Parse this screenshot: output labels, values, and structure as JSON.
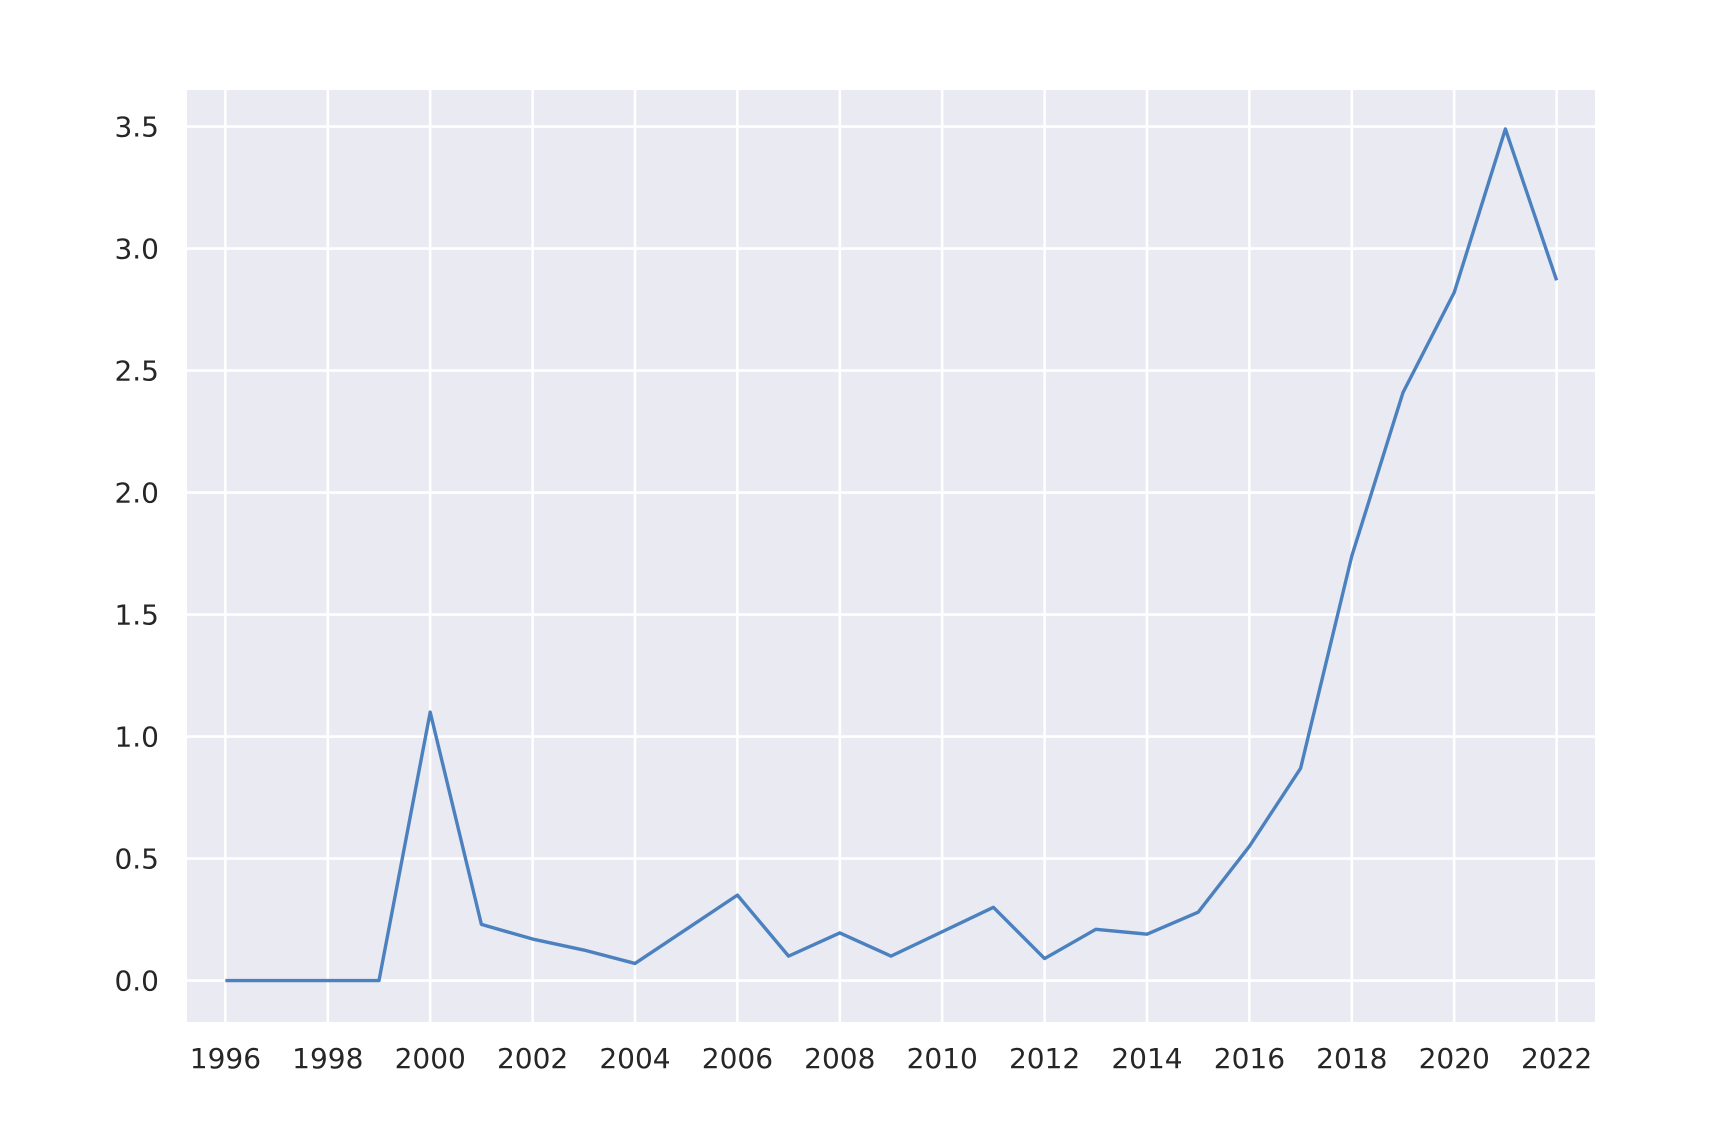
{
  "chart_data": {
    "type": "line",
    "title": "",
    "xlabel": "",
    "ylabel": "",
    "grid": true,
    "style": {
      "plot_background": "#EAEAF2",
      "grid_color": "#FFFFFF",
      "line_color": "#4C81BF",
      "text_color": "#262626",
      "page_background": "#FFFFFF"
    },
    "xlim": [
      1995.25,
      2022.75
    ],
    "ylim": [
      -0.17,
      3.65
    ],
    "x_ticks": [
      1996,
      1998,
      2000,
      2002,
      2004,
      2006,
      2008,
      2010,
      2012,
      2014,
      2016,
      2018,
      2020,
      2022
    ],
    "x_tick_labels": [
      "1996",
      "1998",
      "2000",
      "2002",
      "2004",
      "2006",
      "2008",
      "2010",
      "2012",
      "2014",
      "2016",
      "2018",
      "2020",
      "2022"
    ],
    "y_ticks": [
      0.0,
      0.5,
      1.0,
      1.5,
      2.0,
      2.5,
      3.0,
      3.5
    ],
    "y_tick_labels": [
      "0.0",
      "0.5",
      "1.0",
      "1.5",
      "2.0",
      "2.5",
      "3.0",
      "3.5"
    ],
    "x": [
      1996,
      1997,
      1998,
      1999,
      2000,
      2001,
      2002,
      2003,
      2004,
      2005,
      2006,
      2007,
      2008,
      2009,
      2010,
      2011,
      2012,
      2013,
      2014,
      2015,
      2016,
      2017,
      2018,
      2019,
      2020,
      2021,
      2022
    ],
    "series": [
      {
        "values": [
          0.0,
          0.0,
          0.0,
          0.0,
          1.1,
          0.23,
          0.17,
          0.125,
          0.07,
          0.21,
          0.35,
          0.1,
          0.195,
          0.1,
          0.2,
          0.3,
          0.09,
          0.21,
          0.19,
          0.28,
          0.55,
          0.87,
          1.74,
          2.41,
          2.82,
          3.49,
          2.87
        ]
      }
    ]
  }
}
